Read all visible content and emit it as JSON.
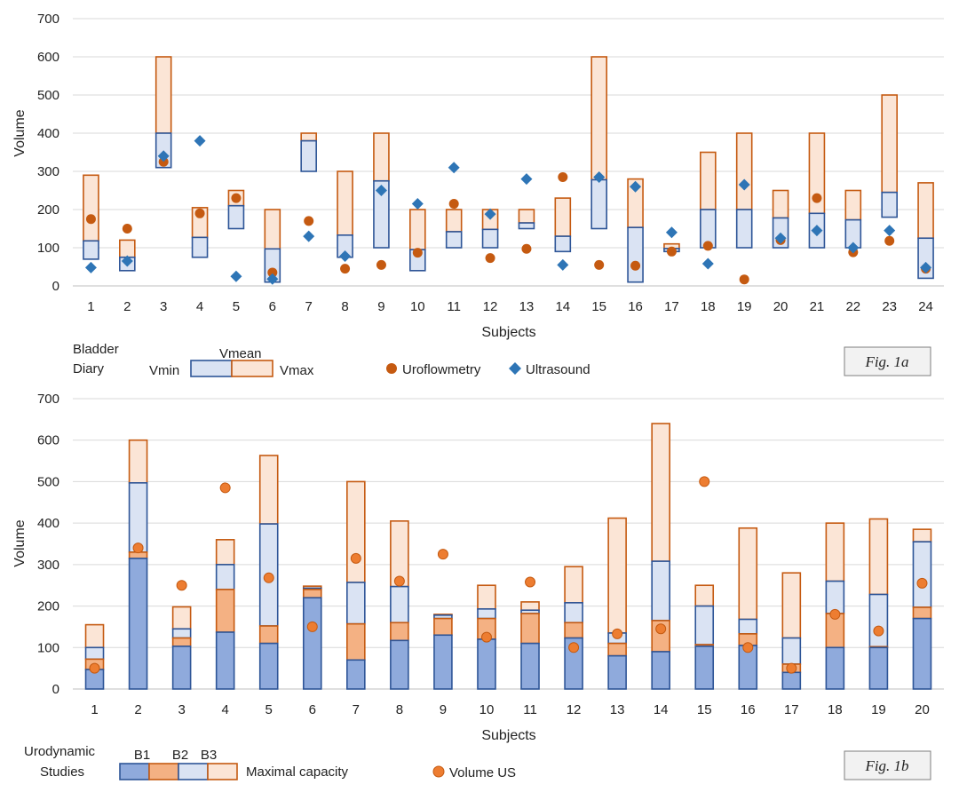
{
  "colors": {
    "blue": "#2e5597",
    "orange": "#c55a11",
    "light_blue": "#dae3f3",
    "blue_fill": "#8faadc",
    "light_orange": "#fbe5d6",
    "mid_orange": "#f4b183",
    "dot_orange": "#c55a11",
    "dot_orange_b": "#ed7d31",
    "diamond_blue": "#2e75b6",
    "grid": "#d9d9d9",
    "axis": "#bfbfbf"
  },
  "chart_data": [
    {
      "id": "fig1a",
      "type": "bar",
      "subtype": "floating-range-with-markers",
      "title": "",
      "xlabel": "Subjects",
      "ylabel": "Volume",
      "ylim": [
        0,
        700
      ],
      "yticks": [
        0,
        100,
        200,
        300,
        400,
        500,
        600,
        700
      ],
      "grid": true,
      "categories": [
        "1",
        "2",
        "3",
        "4",
        "5",
        "6",
        "7",
        "8",
        "9",
        "10",
        "11",
        "12",
        "13",
        "14",
        "15",
        "16",
        "17",
        "18",
        "19",
        "20",
        "21",
        "22",
        "23",
        "24"
      ],
      "series": [
        {
          "name": "Vmin",
          "values": [
            70,
            40,
            310,
            75,
            150,
            10,
            300,
            75,
            100,
            40,
            100,
            100,
            150,
            90,
            150,
            10,
            90,
            100,
            100,
            100,
            100,
            100,
            180,
            20
          ]
        },
        {
          "name": "Vmean",
          "values": [
            118,
            75,
            400,
            127,
            210,
            97,
            380,
            133,
            275,
            95,
            142,
            148,
            165,
            130,
            278,
            153,
            98,
            200,
            200,
            178,
            190,
            173,
            245,
            125
          ]
        },
        {
          "name": "Vmax",
          "values": [
            290,
            120,
            600,
            205,
            250,
            200,
            400,
            300,
            400,
            200,
            200,
            200,
            200,
            230,
            600,
            280,
            110,
            350,
            400,
            250,
            400,
            250,
            500,
            270
          ]
        },
        {
          "name": "Uroflowmetry",
          "values": [
            175,
            150,
            325,
            190,
            230,
            35,
            170,
            45,
            55,
            87,
            215,
            73,
            97,
            285,
            55,
            53,
            90,
            105,
            17,
            120,
            230,
            88,
            118,
            45
          ]
        },
        {
          "name": "Ultrasound",
          "values": [
            48,
            65,
            340,
            380,
            25,
            18,
            130,
            78,
            250,
            215,
            310,
            188,
            280,
            55,
            285,
            260,
            140,
            58,
            265,
            125,
            145,
            100,
            145,
            48
          ]
        }
      ],
      "legend": {
        "group_label_line1": "Bladder",
        "group_label_line2": "Diary",
        "vmin": "Vmin",
        "vmean": "Vmean",
        "vmax": "Vmax",
        "uroflow": "Uroflowmetry",
        "ultrasound": "Ultrasound",
        "placement": "bottom"
      },
      "fig_label": "Fig. 1a"
    },
    {
      "id": "fig1b",
      "type": "bar",
      "subtype": "stacked-with-markers",
      "title": "",
      "xlabel": "Subjects",
      "ylabel": "Volume",
      "ylim": [
        0,
        700
      ],
      "yticks": [
        0,
        100,
        200,
        300,
        400,
        500,
        600,
        700
      ],
      "grid": true,
      "categories": [
        "1",
        "2",
        "3",
        "4",
        "5",
        "6",
        "7",
        "8",
        "9",
        "10",
        "11",
        "12",
        "13",
        "14",
        "15",
        "16",
        "17",
        "18",
        "19",
        "20"
      ],
      "series": [
        {
          "name": "B1",
          "values": [
            47,
            315,
            103,
            137,
            110,
            220,
            70,
            117,
            130,
            120,
            110,
            123,
            80,
            90,
            103,
            105,
            40,
            100,
            100,
            170
          ]
        },
        {
          "name": "B2",
          "values": [
            72,
            330,
            123,
            240,
            152,
            240,
            157,
            160,
            170,
            170,
            182,
            160,
            110,
            165,
            107,
            133,
            60,
            182,
            102,
            197
          ]
        },
        {
          "name": "B3",
          "values": [
            100,
            497,
            145,
            300,
            398,
            243,
            257,
            247,
            178,
            193,
            190,
            208,
            135,
            308,
            200,
            168,
            123,
            260,
            228,
            355
          ]
        },
        {
          "name": "Maximal capacity",
          "values": [
            155,
            600,
            198,
            360,
            563,
            248,
            500,
            405,
            180,
            250,
            210,
            295,
            412,
            640,
            250,
            388,
            280,
            400,
            410,
            385
          ]
        },
        {
          "name": "Volume US",
          "values": [
            50,
            340,
            250,
            485,
            268,
            150,
            315,
            260,
            325,
            125,
            258,
            100,
            133,
            145,
            500,
            100,
            50,
            180,
            140,
            255
          ]
        }
      ],
      "legend": {
        "group_label_line1": "Urodynamic",
        "group_label_line2": "Studies",
        "b1": "B1",
        "b2": "B2",
        "b3": "B3",
        "max": "Maximal capacity",
        "volume_us": "Volume US",
        "placement": "bottom"
      },
      "fig_label": "Fig. 1b"
    }
  ]
}
